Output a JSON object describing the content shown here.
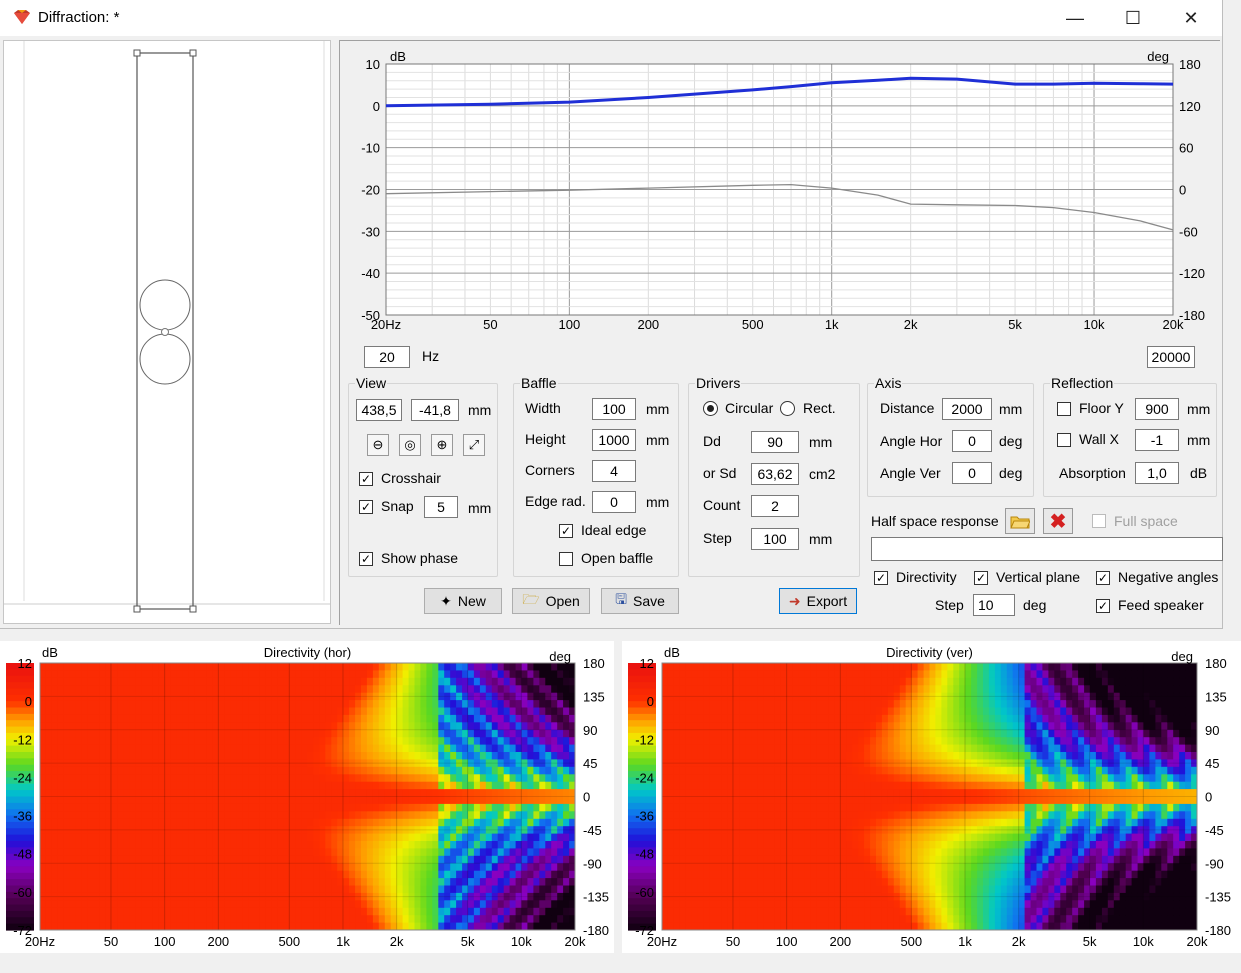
{
  "window": {
    "title": "Diffraction: *",
    "minimize": "—",
    "maximize": "☐",
    "close": "✕"
  },
  "view": {
    "label": "View",
    "x": "438,5",
    "y": "-41,8",
    "unit": "mm",
    "crosshair": "Crosshair",
    "snap": "Snap",
    "snap_value": "5",
    "snap_unit": "mm",
    "show_phase": "Show phase"
  },
  "baffle": {
    "label": "Baffle",
    "width_label": "Width",
    "width": "100",
    "height_label": "Height",
    "height": "1000",
    "corners_label": "Corners",
    "corners": "4",
    "edge_label": "Edge rad.",
    "edge": "0",
    "unit": "mm",
    "ideal_edge": "Ideal edge",
    "open_baffle": "Open baffle"
  },
  "drivers": {
    "label": "Drivers",
    "circular": "Circular",
    "rect": "Rect.",
    "dd_label": "Dd",
    "dd": "90",
    "dd_unit": "mm",
    "sd_label": "or Sd",
    "sd": "63,62",
    "sd_unit": "cm2",
    "count_label": "Count",
    "count": "2",
    "step_label": "Step",
    "step": "100",
    "step_unit": "mm"
  },
  "axis": {
    "label": "Axis",
    "distance_label": "Distance",
    "distance": "2000",
    "distance_unit": "mm",
    "hor_label": "Angle Hor",
    "hor": "0",
    "ver_label": "Angle Ver",
    "ver": "0",
    "unit": "deg"
  },
  "reflection": {
    "label": "Reflection",
    "floor_label": "Floor Y",
    "floor": "900",
    "wall_label": "Wall  X",
    "wall": "-1",
    "unit": "mm",
    "abs_label": "Absorption",
    "abs": "1,0",
    "abs_unit": "dB"
  },
  "half_space": {
    "label": "Half space response",
    "full_space": "Full space"
  },
  "options": {
    "directivity": "Directivity",
    "vertical_plane": "Vertical plane",
    "negative_angles": "Negative angles",
    "feed_speaker": "Feed speaker",
    "step_label": "Step",
    "step": "10",
    "step_unit": "deg"
  },
  "freq_range": {
    "low": "20",
    "unit": "Hz",
    "high": "20000"
  },
  "buttons": {
    "new": "New",
    "open": "Open",
    "save": "Save",
    "export": "Export"
  },
  "colors": {
    "magnitude": "#1f2fd6",
    "phase": "#8a8a8a",
    "accent": "#0078d7"
  },
  "chart_data": [
    {
      "type": "line",
      "xscale": "log",
      "xlim": [
        20,
        20000
      ],
      "ylim": [
        -50,
        10
      ],
      "y2lim": [
        -180,
        180
      ],
      "ylabel": "dB",
      "y2label": "deg",
      "xticks": [
        "20Hz",
        "50",
        "100",
        "200",
        "500",
        "1k",
        "2k",
        "5k",
        "10k",
        "20k"
      ],
      "yticks": [
        "10",
        "0",
        "-10",
        "-20",
        "-30",
        "-40",
        "-50"
      ],
      "y2ticks": [
        "180",
        "120",
        "60",
        "0",
        "-60",
        "-120",
        "-180"
      ],
      "series": [
        {
          "color": "#1f2fd6",
          "x": [
            20,
            50,
            100,
            200,
            500,
            700,
            1000,
            1500,
            2000,
            3000,
            5000,
            7000,
            10000,
            15000,
            20000
          ],
          "values": [
            0,
            0.4,
            0.9,
            2.0,
            3.8,
            4.6,
            5.5,
            6.1,
            6.6,
            6.4,
            5.2,
            5.2,
            5.4,
            5.3,
            5.2
          ]
        },
        {
          "color": "#8a8a8a",
          "axis": "right",
          "x": [
            20,
            50,
            100,
            200,
            500,
            700,
            1000,
            1500,
            2000,
            3000,
            5000,
            7000,
            10000,
            15000,
            20000
          ],
          "values": [
            -6,
            -3,
            -1,
            2,
            6,
            7,
            2,
            -8,
            -21,
            -22,
            -23,
            -26,
            -33,
            -45,
            -58
          ]
        }
      ]
    },
    {
      "type": "heatmap",
      "title": "Directivity (hor)",
      "plane": "horizontal",
      "xscale": "log",
      "xlim": [
        20,
        20000
      ],
      "ylim": [
        -180,
        180
      ],
      "zlim": [
        -72,
        12
      ],
      "zlabel": "dB",
      "ylabel": "deg",
      "xticks": [
        "20Hz",
        "50",
        "100",
        "200",
        "500",
        "1k",
        "2k",
        "5k",
        "10k",
        "20k"
      ],
      "yticks": [
        "180",
        "135",
        "90",
        "45",
        "0",
        "-45",
        "-90",
        "-135",
        "-180"
      ],
      "zticks": [
        "12",
        "0",
        "-12",
        "-24",
        "-36",
        "-48",
        "-60",
        "-72"
      ]
    },
    {
      "type": "heatmap",
      "title": "Directivity (ver)",
      "plane": "vertical",
      "xscale": "log",
      "xlim": [
        20,
        20000
      ],
      "ylim": [
        -180,
        180
      ],
      "zlim": [
        -72,
        12
      ],
      "zlabel": "dB",
      "ylabel": "deg",
      "xticks": [
        "20Hz",
        "50",
        "100",
        "200",
        "500",
        "1k",
        "2k",
        "5k",
        "10k",
        "20k"
      ],
      "yticks": [
        "180",
        "135",
        "90",
        "45",
        "0",
        "-45",
        "-90",
        "-135",
        "-180"
      ],
      "zticks": [
        "12",
        "0",
        "-12",
        "-24",
        "-36",
        "-48",
        "-60",
        "-72"
      ]
    }
  ]
}
